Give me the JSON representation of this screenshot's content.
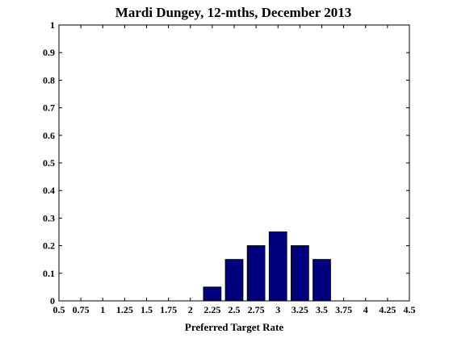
{
  "chart_data": {
    "type": "bar",
    "title": "Mardi Dungey, 12-mths, December 2013",
    "xlabel": "Preferred Target Rate",
    "ylabel": "",
    "xlim": [
      0.5,
      4.5
    ],
    "ylim": [
      0,
      1
    ],
    "x_ticks": [
      "0.5",
      "0.75",
      "1",
      "1.25",
      "1.5",
      "1.75",
      "2",
      "2.25",
      "2.5",
      "2.75",
      "3",
      "3.25",
      "3.5",
      "3.75",
      "4",
      "4.25",
      "4.5"
    ],
    "y_ticks": [
      "0",
      "0.1",
      "0.2",
      "0.3",
      "0.4",
      "0.5",
      "0.6",
      "0.7",
      "0.8",
      "0.9",
      "1"
    ],
    "categories": [
      "0.5",
      "0.75",
      "1",
      "1.25",
      "1.5",
      "1.75",
      "2",
      "2.25",
      "2.5",
      "2.75",
      "3",
      "3.25",
      "3.5",
      "3.75",
      "4",
      "4.25",
      "4.5"
    ],
    "values": [
      0,
      0,
      0,
      0,
      0,
      0,
      0,
      0.05,
      0.15,
      0.2,
      0.25,
      0.2,
      0.15,
      0,
      0,
      0,
      0
    ],
    "bar_width_fraction": 0.8,
    "grid": false,
    "colors": {
      "bar_fill": "#00007f",
      "bar_edge": "#000000",
      "axes": "#000000"
    }
  }
}
